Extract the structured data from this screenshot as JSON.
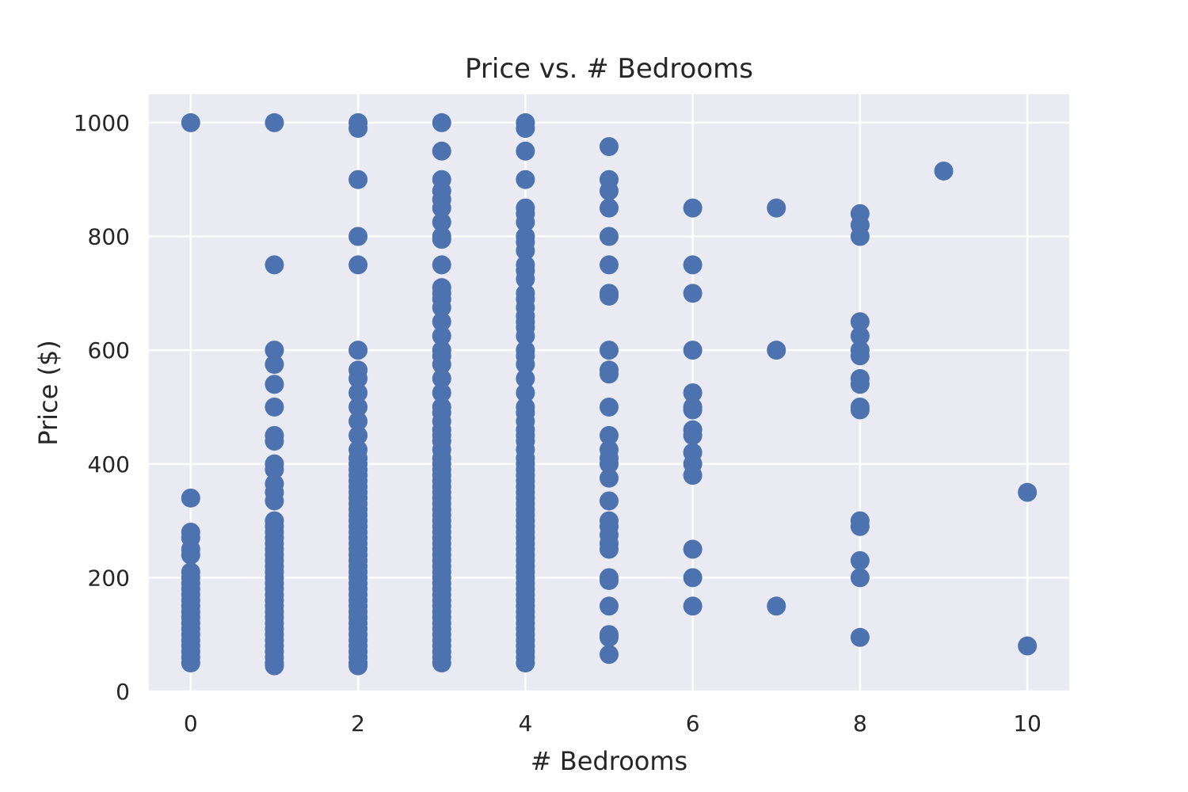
{
  "chart_data": {
    "type": "scatter",
    "title": "Price vs. # Bedrooms",
    "xlabel": "# Bedrooms",
    "ylabel": "Price ($)",
    "xlim": [
      -0.5,
      10.5
    ],
    "ylim": [
      0,
      1050
    ],
    "xticks": [
      0,
      2,
      4,
      6,
      8,
      10
    ],
    "yticks": [
      0,
      200,
      400,
      600,
      800,
      1000
    ],
    "xtick_labels": [
      "0",
      "2",
      "4",
      "6",
      "8",
      "10"
    ],
    "ytick_labels": [
      "0",
      "200",
      "400",
      "600",
      "800",
      "1000"
    ],
    "grid": true,
    "background": "#eaeaf2",
    "grid_color": "#ffffff",
    "marker_color": "#4c72b0",
    "series": [
      {
        "points": [
          {
            "x": 0,
            "ys": [
              1000,
              340,
              280,
              270,
              250,
              240,
              210,
              200,
              190,
              180,
              170,
              160,
              150,
              140,
              130,
              120,
              110,
              100,
              90,
              80,
              70,
              60,
              50
            ]
          },
          {
            "x": 1,
            "ys": [
              1000,
              750,
              600,
              575,
              540,
              500,
              450,
              440,
              400,
              390,
              365,
              350,
              335,
              300,
              290,
              280,
              270,
              260,
              250,
              240,
              230,
              220,
              210,
              200,
              190,
              180,
              170,
              160,
              150,
              140,
              130,
              120,
              110,
              100,
              90,
              80,
              70,
              60,
              50,
              45
            ]
          },
          {
            "x": 2,
            "ys": [
              1000,
              990,
              900,
              800,
              750,
              600,
              565,
              550,
              525,
              500,
              475,
              450,
              425,
              410,
              400,
              390,
              380,
              370,
              360,
              350,
              340,
              330,
              320,
              310,
              300,
              290,
              280,
              270,
              260,
              250,
              240,
              230,
              220,
              210,
              200,
              190,
              180,
              170,
              160,
              150,
              140,
              130,
              120,
              110,
              100,
              90,
              80,
              70,
              60,
              50,
              45
            ]
          },
          {
            "x": 3,
            "ys": [
              1000,
              950,
              900,
              880,
              865,
              850,
              825,
              800,
              795,
              750,
              710,
              700,
              690,
              675,
              650,
              625,
              600,
              590,
              575,
              550,
              525,
              500,
              490,
              475,
              460,
              450,
              440,
              425,
              410,
              400,
              390,
              380,
              370,
              360,
              350,
              340,
              330,
              320,
              310,
              300,
              290,
              280,
              270,
              260,
              250,
              240,
              230,
              220,
              210,
              200,
              190,
              180,
              170,
              160,
              150,
              140,
              130,
              120,
              110,
              100,
              90,
              80,
              70,
              60,
              50
            ]
          },
          {
            "x": 4,
            "ys": [
              1000,
              990,
              950,
              900,
              850,
              840,
              825,
              800,
              790,
              775,
              750,
              740,
              725,
              700,
              690,
              675,
              660,
              650,
              640,
              625,
              600,
              590,
              575,
              550,
              525,
              500,
              490,
              475,
              460,
              450,
              440,
              425,
              410,
              400,
              390,
              380,
              370,
              360,
              350,
              340,
              330,
              320,
              310,
              300,
              290,
              280,
              270,
              260,
              250,
              240,
              230,
              220,
              210,
              200,
              190,
              180,
              170,
              160,
              150,
              140,
              130,
              120,
              110,
              100,
              90,
              80,
              70,
              60,
              50
            ]
          },
          {
            "x": 5,
            "ys": [
              958,
              900,
              880,
              850,
              800,
              750,
              700,
              695,
              600,
              565,
              558,
              500,
              450,
              425,
              410,
              400,
              375,
              335,
              300,
              290,
              275,
              260,
              250,
              200,
              195,
              150,
              100,
              95,
              65
            ]
          },
          {
            "x": 6,
            "ys": [
              850,
              750,
              700,
              600,
              525,
              500,
              495,
              460,
              450,
              420,
              400,
              380,
              250,
              200,
              150
            ]
          },
          {
            "x": 7,
            "ys": [
              850,
              600,
              150
            ]
          },
          {
            "x": 8,
            "ys": [
              840,
              820,
              800,
              650,
              625,
              600,
              590,
              550,
              540,
              500,
              495,
              300,
              290,
              230,
              200,
              95
            ]
          },
          {
            "x": 9,
            "ys": [
              915
            ]
          },
          {
            "x": 10,
            "ys": [
              350,
              80
            ]
          }
        ]
      }
    ]
  }
}
